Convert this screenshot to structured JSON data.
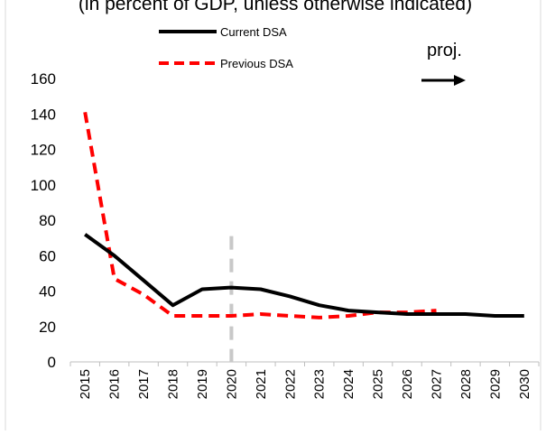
{
  "chart_data": {
    "type": "line",
    "title": "(in percent of GDP, unless otherwise indicated)",
    "xlabel": "",
    "ylabel": "",
    "ylim": [
      0,
      160
    ],
    "yticks": [
      0,
      20,
      40,
      60,
      80,
      100,
      120,
      140,
      160
    ],
    "x": [
      "2015",
      "2016",
      "2017",
      "2018",
      "2019",
      "2020",
      "2021",
      "2022",
      "2023",
      "2024",
      "2025",
      "2026",
      "2027",
      "2028",
      "2029",
      "2030"
    ],
    "series": [
      {
        "name": "Current DSA",
        "color": "#000000",
        "style": "solid",
        "values": [
          72,
          60,
          46,
          32,
          41,
          42,
          41,
          37,
          32,
          29,
          28,
          27,
          27,
          27,
          26,
          26
        ]
      },
      {
        "name": "Previous DSA",
        "color": "#ff0000",
        "style": "dashed",
        "values": [
          141,
          47,
          38,
          26,
          26,
          26,
          27,
          26,
          25,
          26,
          28,
          28,
          29,
          null,
          null,
          null
        ]
      }
    ],
    "projection_marker": {
      "year": "2020",
      "color": "#c8c8c8"
    },
    "annotation": {
      "text": "proj.",
      "arrow": "right-arrow-icon"
    },
    "legend_position": "top-left",
    "grid": false
  }
}
